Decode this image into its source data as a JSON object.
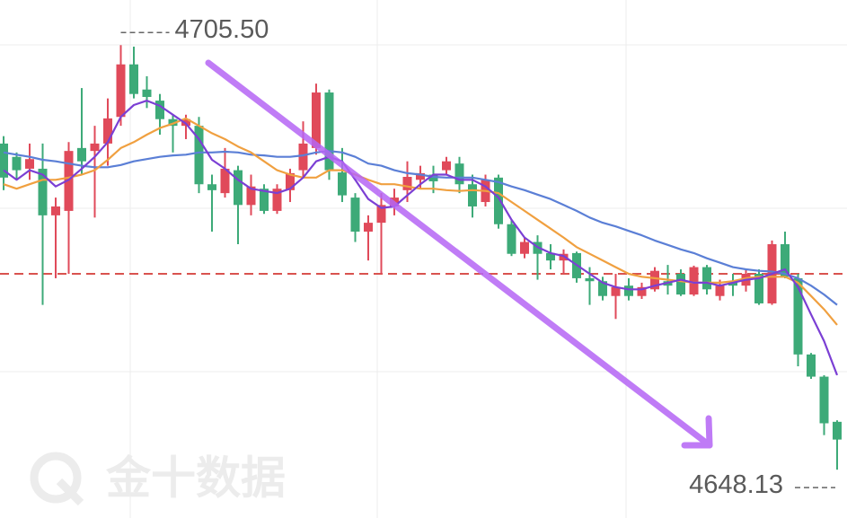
{
  "chart_data": {
    "type": "candlestick",
    "up_color": "#e04a5a",
    "down_color": "#3daa78",
    "ylim": [
      4641.6,
      4711.6
    ],
    "open": [
      4692.2,
      4690.4,
      4688.8,
      4688.8,
      4682.5,
      4683.1,
      4691.6,
      4691.2,
      4692.2,
      4695.8,
      4702.9,
      4699.5,
      4698.0,
      4695.5,
      4694.6,
      4694.6,
      4686.7,
      4685.5,
      4688.6,
      4683.9,
      4686.1,
      4683.1,
      4685.9,
      4688.6,
      4691.6,
      4699.1,
      4688.3,
      4684.9,
      4680.3,
      4681.5,
      4683.7,
      4685.9,
      4687.3,
      4688.0,
      4688.6,
      4689.5,
      4686.7,
      4684.3,
      4687.6,
      4681.3,
      4677.3,
      4678.9,
      4677.4,
      4676.4,
      4677.4,
      4674.0,
      4673.6,
      4671.6,
      4673.0,
      4671.6,
      4672.5,
      4673.6,
      4674.6,
      4671.8,
      4675.5,
      4671.6,
      4673.6,
      4673.0,
      4674.6,
      4670.6,
      4678.6,
      4674.0,
      4663.7,
      4660.7,
      4654.6
    ],
    "high": [
      4693.2,
      4691.0,
      4692.2,
      4692.2,
      4684.9,
      4692.4,
      4699.7,
      4694.6,
      4698.3,
      4705.5,
      4705.3,
      4701.3,
      4698.9,
      4696.1,
      4696.1,
      4695.8,
      4688.0,
      4691.6,
      4689.2,
      4688.0,
      4686.7,
      4686.7,
      4688.8,
      4695.2,
      4700.3,
      4699.5,
      4691.6,
      4685.5,
      4682.5,
      4685.5,
      4686.1,
      4689.8,
      4689.2,
      4689.2,
      4690.4,
      4690.4,
      4688.0,
      4688.0,
      4688.0,
      4681.9,
      4679.5,
      4679.8,
      4678.6,
      4677.9,
      4677.6,
      4675.5,
      4674.2,
      4674.6,
      4674.0,
      4673.4,
      4675.5,
      4675.8,
      4675.2,
      4675.7,
      4675.8,
      4673.8,
      4674.6,
      4675.2,
      4675.2,
      4679.1,
      4680.3,
      4674.6,
      4663.9,
      4660.9,
      4654.8
    ],
    "low": [
      4685.9,
      4687.3,
      4687.3,
      4670.4,
      4674.0,
      4674.6,
      4688.0,
      4682.2,
      4689.2,
      4694.6,
      4698.3,
      4697.0,
      4693.4,
      4691.0,
      4692.8,
      4685.5,
      4680.3,
      4684.9,
      4678.6,
      4682.5,
      4682.7,
      4682.7,
      4684.3,
      4687.6,
      4690.7,
      4687.3,
      4684.3,
      4678.9,
      4676.4,
      4674.6,
      4682.5,
      4684.3,
      4686.1,
      4685.5,
      4688.0,
      4685.5,
      4682.2,
      4683.7,
      4680.7,
      4677.0,
      4676.7,
      4673.8,
      4675.2,
      4674.6,
      4673.4,
      4670.4,
      4671.0,
      4668.5,
      4671.0,
      4671.2,
      4672.2,
      4671.8,
      4671.6,
      4671.6,
      4671.8,
      4671.0,
      4671.6,
      4672.2,
      4670.4,
      4670.4,
      4674.0,
      4662.1,
      4660.4,
      4652.8,
      4648.13
    ],
    "close": [
      4687.6,
      4688.6,
      4690.1,
      4682.5,
      4683.7,
      4691.2,
      4689.8,
      4692.2,
      4695.6,
      4702.9,
      4698.9,
      4698.5,
      4695.5,
      4694.6,
      4695.5,
      4686.7,
      4685.9,
      4688.8,
      4683.9,
      4686.4,
      4683.1,
      4686.1,
      4688.2,
      4692.2,
      4699.1,
      4688.6,
      4685.2,
      4680.3,
      4681.5,
      4683.9,
      4684.9,
      4687.7,
      4688.2,
      4687.1,
      4689.8,
      4686.7,
      4683.7,
      4687.3,
      4681.3,
      4677.3,
      4678.9,
      4677.3,
      4676.4,
      4677.3,
      4674.0,
      4673.6,
      4671.6,
      4672.8,
      4671.6,
      4672.8,
      4675.0,
      4673.0,
      4671.8,
      4675.5,
      4672.5,
      4673.0,
      4673.0,
      4674.6,
      4670.6,
      4678.6,
      4674.2,
      4663.7,
      4660.7,
      4654.4,
      4652.2
    ],
    "lines": [
      {
        "color": "#5b7fd6",
        "values": [
          4691.0,
          4690.7,
          4690.4,
          4690.0,
          4689.8,
          4689.5,
          4689.2,
          4689.0,
          4689.0,
          4689.3,
          4689.8,
          4690.1,
          4690.4,
          4690.6,
          4690.7,
          4691.0,
          4691.0,
          4691.1,
          4691.0,
          4690.7,
          4690.6,
          4690.4,
          4690.4,
          4690.6,
          4691.0,
          4691.2,
          4691.0,
          4690.4,
          4689.5,
          4689.2,
          4688.6,
          4688.2,
          4688.0,
          4687.7,
          4687.6,
          4687.6,
          4687.6,
          4687.3,
          4687.0,
          4686.4,
          4685.9,
          4685.3,
          4684.7,
          4683.9,
          4683.1,
          4682.2,
          4681.5,
          4681.0,
          4680.4,
          4679.8,
          4679.1,
          4678.5,
          4677.9,
          4677.4,
          4676.7,
          4676.1,
          4675.5,
          4675.2,
          4675.0,
          4674.9,
          4674.6,
          4674.0,
          4673.0,
          4671.8,
          4670.4
        ]
      },
      {
        "color": "#f0a040",
        "values": [
          4686.7,
          4686.1,
          4686.7,
          4687.3,
          4687.3,
          4687.6,
          4688.0,
          4688.6,
          4690.0,
          4691.6,
          4692.4,
          4693.4,
          4694.3,
          4694.9,
          4695.6,
          4694.6,
          4693.6,
          4692.8,
          4691.8,
          4691.0,
          4689.8,
          4688.6,
          4688.0,
          4687.6,
          4687.6,
          4688.6,
          4688.6,
          4688.0,
          4687.3,
          4686.7,
          4686.7,
          4686.4,
          4686.1,
          4686.1,
          4685.9,
          4685.8,
          4685.9,
          4685.8,
          4685.5,
          4684.3,
          4683.1,
          4681.9,
          4680.7,
          4679.5,
          4678.2,
          4677.3,
          4676.4,
          4675.5,
          4674.6,
          4674.2,
          4674.0,
          4673.8,
          4673.6,
          4673.4,
          4673.4,
          4673.4,
          4673.6,
          4674.0,
          4674.2,
          4674.2,
          4674.2,
          4673.4,
          4671.6,
          4669.8,
          4667.7
        ]
      },
      {
        "color": "#7b3fd4",
        "values": [
          4688.6,
          4687.3,
          4688.6,
          4688.0,
          4686.4,
          4687.3,
          4688.8,
          4690.4,
          4692.4,
          4695.8,
          4697.4,
          4698.0,
          4697.3,
          4696.1,
          4694.9,
          4692.8,
          4690.0,
          4688.8,
          4687.3,
          4686.1,
          4685.8,
          4685.5,
          4686.1,
          4687.6,
          4689.8,
          4690.4,
          4689.8,
          4687.3,
          4684.7,
          4683.5,
          4683.7,
          4685.2,
          4686.7,
          4688.0,
          4688.0,
          4687.3,
          4687.3,
          4686.4,
          4684.9,
          4681.9,
          4679.5,
          4678.2,
          4677.4,
          4677.0,
          4675.8,
          4674.6,
          4673.4,
          4672.8,
          4672.5,
          4672.5,
          4673.0,
          4673.4,
          4673.8,
          4673.4,
          4673.4,
          4673.0,
          4673.4,
          4673.8,
          4674.0,
          4674.6,
          4675.2,
          4672.8,
          4669.1,
          4665.5,
          4660.9
        ]
      }
    ],
    "ref_line": {
      "value": 4674.6,
      "color": "#d9534f"
    },
    "annotations": [
      {
        "value": 4705.5,
        "label": "4705.50"
      },
      {
        "value": 4648.13,
        "label": "4648.13"
      }
    ]
  },
  "watermark": "金十数据"
}
